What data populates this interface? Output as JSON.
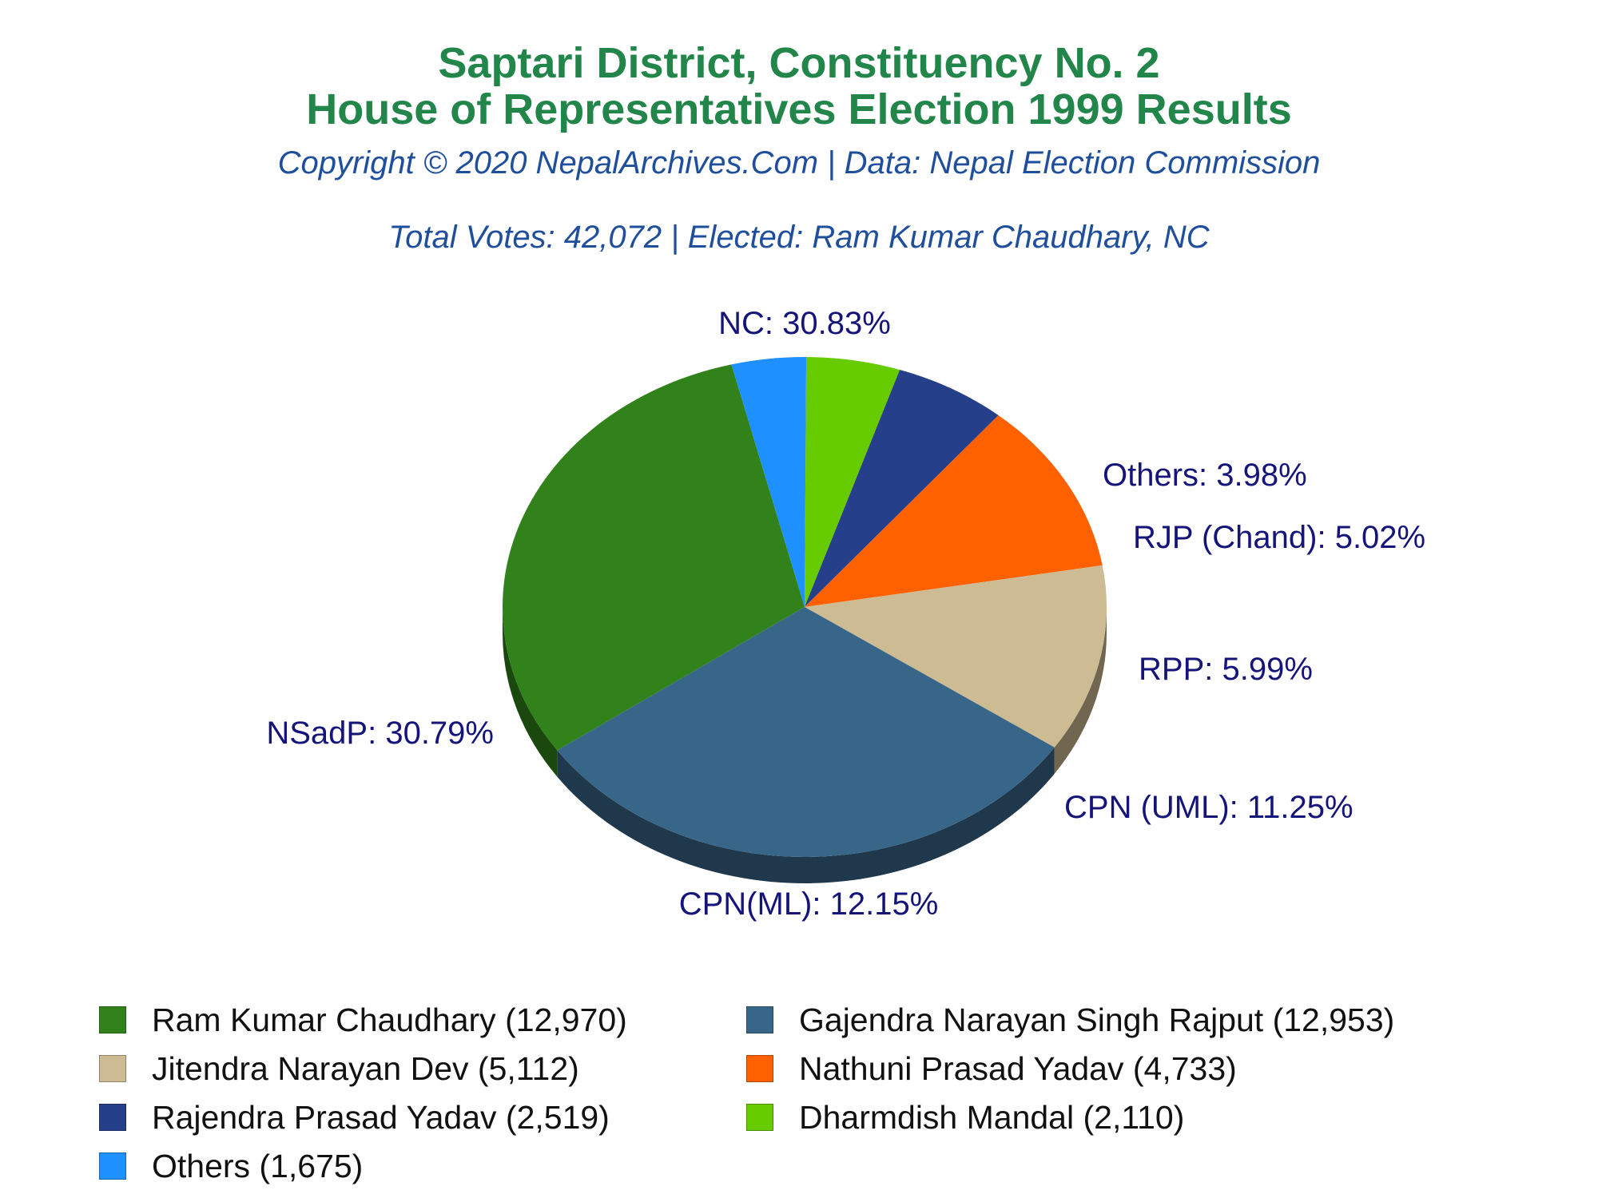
{
  "chart_data": {
    "type": "pie",
    "title": "Saptari District, Constituency No. 2",
    "subtitle": "House of Representatives Election 1999 Results",
    "copyright": "Copyright © 2020 NepalArchives.Com | Data: Nepal Election Commission",
    "summary": "Total Votes: 42,072 | Elected: Ram Kumar Chaudhary, NC",
    "legend_placement": "bottom",
    "slices": [
      {
        "label": "NC: 30.83%",
        "legend": "Ram Kumar Chaudhary (12,970)",
        "value": 12970,
        "percent": 30.83,
        "color": "#31821a"
      },
      {
        "label": "Others: 3.98%",
        "legend": "Others (1,675)",
        "value": 1675,
        "percent": 3.98,
        "color": "#1e90ff"
      },
      {
        "label": "RJP (Chand): 5.02%",
        "legend": "Dharmdish Mandal (2,110)",
        "value": 2110,
        "percent": 5.02,
        "color": "#66cc00"
      },
      {
        "label": "RPP: 5.99%",
        "legend": "Rajendra Prasad Yadav (2,519)",
        "value": 2519,
        "percent": 5.99,
        "color": "#263f8a"
      },
      {
        "label": "CPN (UML): 11.25%",
        "legend": "Nathuni Prasad Yadav (4,733)",
        "value": 4733,
        "percent": 11.25,
        "color": "#ff6000"
      },
      {
        "label": "CPN(ML): 12.15%",
        "legend": "Jitendra Narayan Dev (5,112)",
        "value": 5112,
        "percent": 12.15,
        "color": "#cdbb93"
      },
      {
        "label": "NSadP: 30.79%",
        "legend": "Gajendra Narayan Singh Rajput (12,953)",
        "value": 12953,
        "percent": 30.79,
        "color": "#386689"
      }
    ],
    "legend_order": [
      0,
      6,
      5,
      4,
      3,
      2,
      1
    ]
  }
}
